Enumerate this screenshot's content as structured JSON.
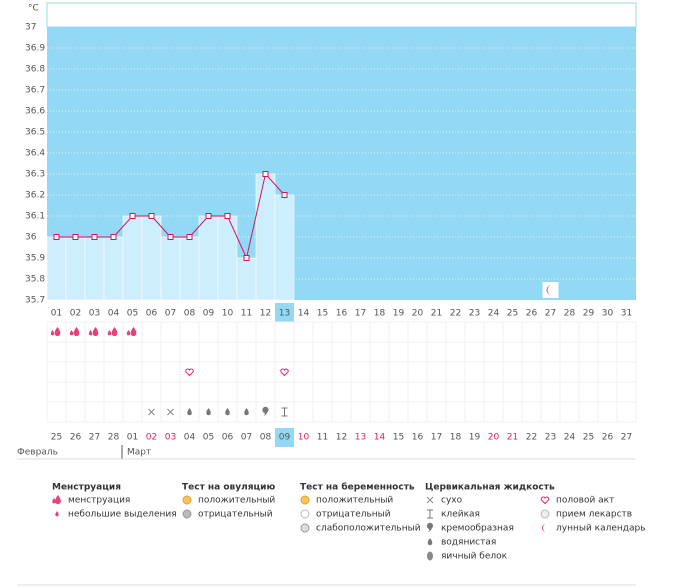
{
  "chart_data": {
    "type": "line",
    "y_unit": "°C",
    "x": [
      "01",
      "02",
      "03",
      "04",
      "05",
      "06",
      "07",
      "08",
      "09",
      "10",
      "11",
      "12",
      "13",
      "14",
      "15",
      "16",
      "17",
      "18",
      "19",
      "20",
      "21",
      "22",
      "23",
      "24",
      "25",
      "26",
      "27",
      "28",
      "29",
      "30",
      "31"
    ],
    "values": [
      36.0,
      36.0,
      36.0,
      36.0,
      36.1,
      36.1,
      36.0,
      36.0,
      36.1,
      36.1,
      35.9,
      36.3,
      36.2,
      null,
      null,
      null,
      null,
      null,
      null,
      null,
      null,
      null,
      null,
      null,
      null,
      null,
      null,
      null,
      null,
      null,
      null
    ],
    "ylim": [
      35.7,
      37
    ],
    "yticks": [
      35.7,
      35.8,
      35.9,
      36,
      36.1,
      36.2,
      36.3,
      36.4,
      36.5,
      36.6,
      36.7,
      36.8,
      36.9,
      37
    ],
    "grid": true,
    "plot_color": "#93d8f5",
    "fill_color": "#cdeefc",
    "line_color": "#d4145a",
    "highlight_day": "13",
    "moon_day": "27",
    "dates": [
      "25",
      "26",
      "27",
      "28",
      "01",
      "02",
      "03",
      "04",
      "05",
      "06",
      "07",
      "08",
      "09",
      "10",
      "11",
      "12",
      "13",
      "14",
      "15",
      "16",
      "17",
      "18",
      "19",
      "20",
      "21",
      "22",
      "23",
      "24",
      "25",
      "26",
      "27"
    ],
    "date_colors": [
      "#555",
      "#555",
      "#555",
      "#555",
      "#555",
      "#e0245e",
      "#e0245e",
      "#555",
      "#555",
      "#555",
      "#555",
      "#555",
      "#555",
      "#e0245e",
      "#555",
      "#555",
      "#e0245e",
      "#e0245e",
      "#555",
      "#555",
      "#555",
      "#555",
      "#555",
      "#e0245e",
      "#e0245e",
      "#555",
      "#555",
      "#555",
      "#555",
      "#555",
      "#555"
    ],
    "highlight_date": 12,
    "months": [
      "Февраль",
      "Март"
    ],
    "menstruation_days": [
      "01",
      "02",
      "03",
      "04",
      "05"
    ],
    "intercourse_days": [
      "08",
      "13"
    ],
    "cervical": [
      {
        "day": "06",
        "kind": "сухо"
      },
      {
        "day": "07",
        "kind": "сухо"
      },
      {
        "day": "08",
        "kind": "водянистая"
      },
      {
        "day": "09",
        "kind": "водянистая"
      },
      {
        "day": "10",
        "kind": "водянистая"
      },
      {
        "day": "11",
        "kind": "водянистая"
      },
      {
        "day": "12",
        "kind": "кремообразная"
      },
      {
        "day": "13",
        "kind": "клейкая"
      }
    ]
  },
  "legend": [
    {
      "title": "Менструация",
      "items": [
        "менструация",
        "небольшие выделения"
      ]
    },
    {
      "title": "Тест на овуляцию",
      "items": [
        "положительный",
        "отрицательный"
      ]
    },
    {
      "title": "Тест на беременность",
      "items": [
        "положительный",
        "отрицательный",
        "слабоположительный"
      ]
    },
    {
      "title": "Цервикальная жидкость",
      "items": [
        "сухо",
        "клейкая",
        "кремообразная",
        "водянистая",
        "яичный белок"
      ]
    },
    {
      "title": "",
      "items": [
        "половой акт",
        "прием лекарств",
        "лунный календарь"
      ]
    }
  ]
}
